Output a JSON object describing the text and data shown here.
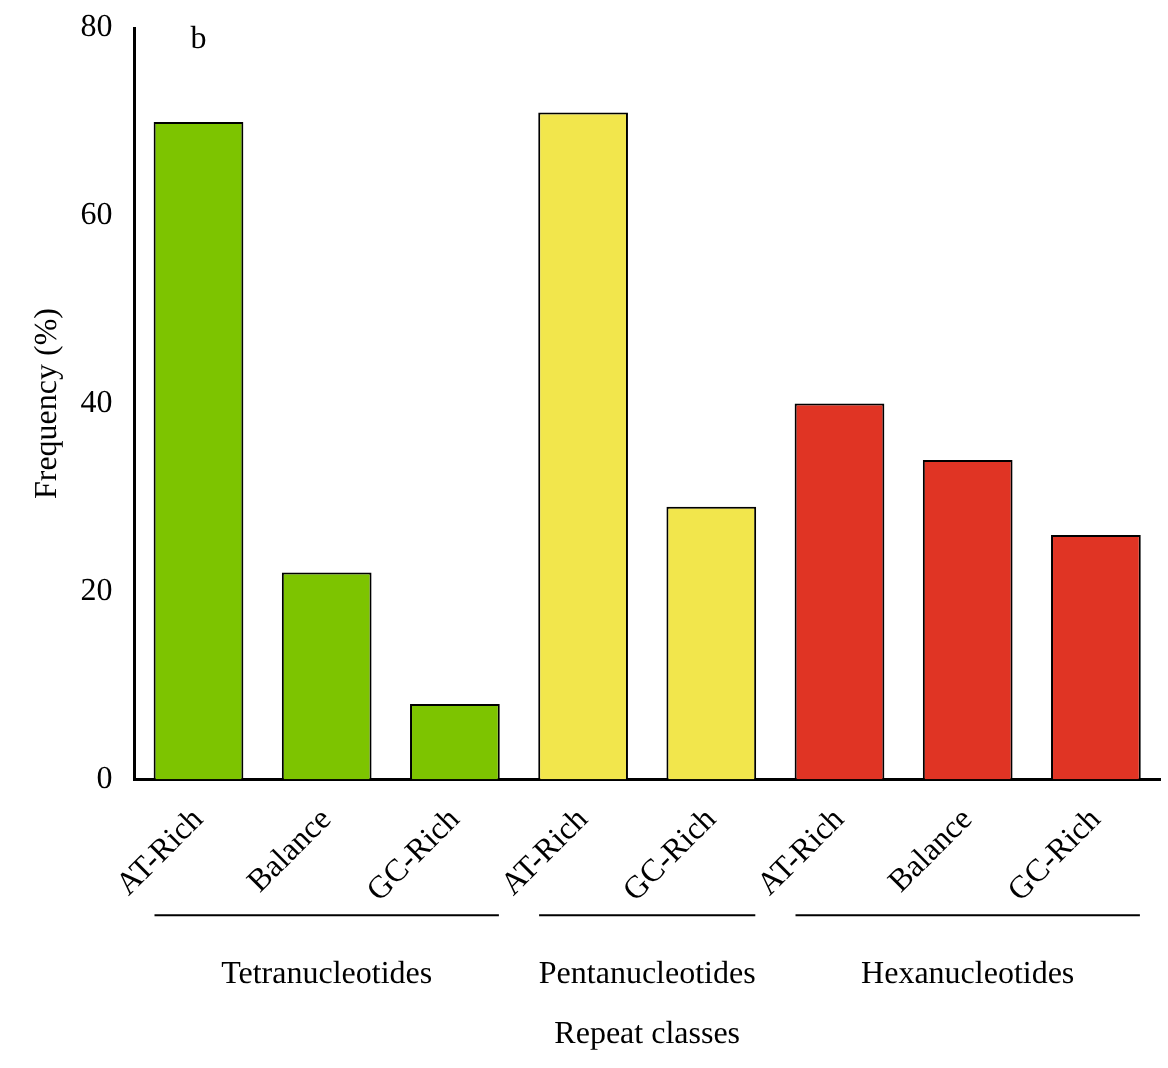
{
  "chart_data": {
    "type": "bar",
    "xlabel": "Repeat classes",
    "ylabel": "Frequency (%)",
    "categories": [
      "AT-Rich",
      "Balance",
      "GC-Rich",
      "AT-Rich",
      "GC-Rich",
      "AT-Rich",
      "Balance",
      "GC-Rich"
    ],
    "values": [
      70,
      22,
      8,
      71,
      29,
      40,
      34,
      26
    ],
    "colors": [
      "#7dc400",
      "#7dc400",
      "#7dc400",
      "#f2e64c",
      "#f2e64c",
      "#e03424",
      "#e03424",
      "#e03424"
    ],
    "ylim": [
      0,
      80
    ],
    "yticks": [
      0,
      20,
      40,
      60,
      80
    ],
    "grid": false,
    "legend": false,
    "annotations": [
      "b",
      "Tetranucleotides",
      "Pentanucleotides",
      "Hexanucleotides"
    ]
  }
}
